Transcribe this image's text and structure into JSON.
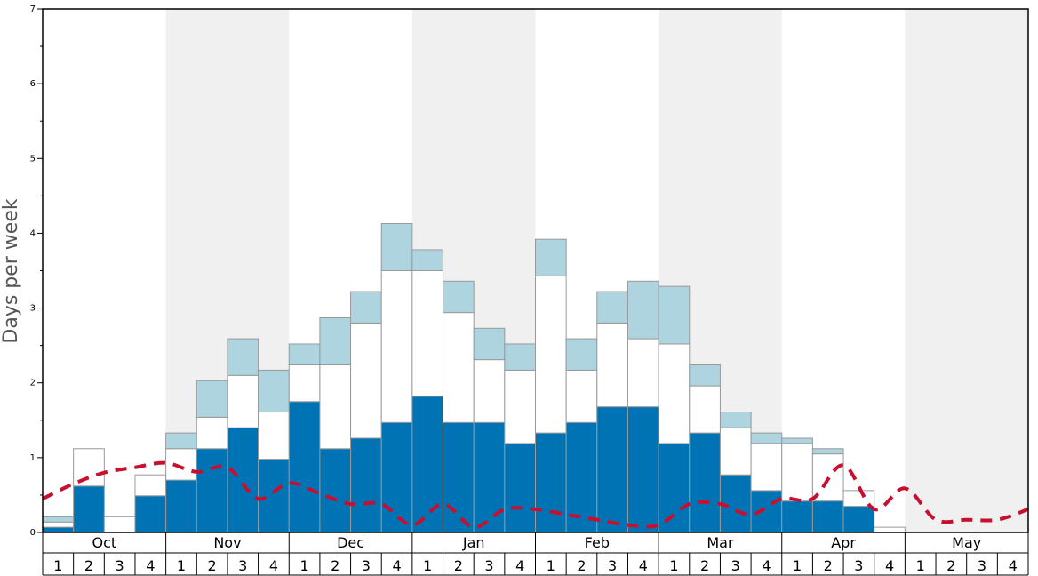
{
  "chart_data": {
    "type": "bar",
    "title": "",
    "ylabel": "Days per week",
    "xlabel": "",
    "ylim": [
      0,
      7
    ],
    "y_ticks": [
      "0",
      "1",
      "2",
      "3",
      "4",
      "5",
      "6",
      "7"
    ],
    "months": [
      "Oct",
      "Nov",
      "Dec",
      "Jan",
      "Feb",
      "Mar",
      "Apr",
      "May"
    ],
    "week_labels": [
      "1",
      "2",
      "3",
      "4"
    ],
    "stacked": true,
    "series": [
      {
        "key": "dark",
        "color": "#0073b5",
        "values": [
          0.07,
          0.62,
          0,
          0.49,
          0.7,
          1.12,
          1.4,
          0.98,
          1.75,
          1.12,
          1.26,
          1.47,
          1.82,
          1.47,
          1.47,
          1.19,
          1.33,
          1.47,
          1.68,
          1.68,
          1.19,
          1.33,
          0.77,
          0.56,
          0.42,
          0.42,
          0.35,
          0,
          0,
          0,
          0,
          0
        ]
      },
      {
        "key": "white",
        "color": "#ffffff",
        "values": [
          0.07,
          0.5,
          0.21,
          0.28,
          0.42,
          0.42,
          0.7,
          0.63,
          0.49,
          1.12,
          1.54,
          2.03,
          1.68,
          1.47,
          0.84,
          0.98,
          2.1,
          0.7,
          1.12,
          0.91,
          1.33,
          0.63,
          0.63,
          0.63,
          0.77,
          0.63,
          0.21,
          0.07,
          0,
          0,
          0,
          0
        ]
      },
      {
        "key": "light",
        "color": "#aed4e0",
        "values": [
          0.07,
          0,
          0,
          0,
          0.21,
          0.49,
          0.49,
          0.56,
          0.28,
          0.63,
          0.42,
          0.63,
          0.28,
          0.42,
          0.42,
          0.35,
          0.49,
          0.42,
          0.42,
          0.77,
          0.77,
          0.28,
          0.21,
          0.14,
          0.07,
          0.07,
          0,
          0,
          0,
          0,
          0,
          0
        ]
      }
    ],
    "average_line": {
      "color": "#c8102e",
      "style": "dashed",
      "values": [
        0.45,
        0.65,
        0.8,
        0.87,
        0.93,
        0.81,
        0.87,
        0.45,
        0.66,
        0.52,
        0.38,
        0.38,
        0.1,
        0.38,
        0.07,
        0.31,
        0.31,
        0.24,
        0.17,
        0.1,
        0.1,
        0.38,
        0.38,
        0.24,
        0.45,
        0.45,
        0.9,
        0.31,
        0.59,
        0.17,
        0.17,
        0.17,
        0.31
      ]
    },
    "grid": false,
    "alternating_month_shading": true,
    "legend": "none"
  }
}
